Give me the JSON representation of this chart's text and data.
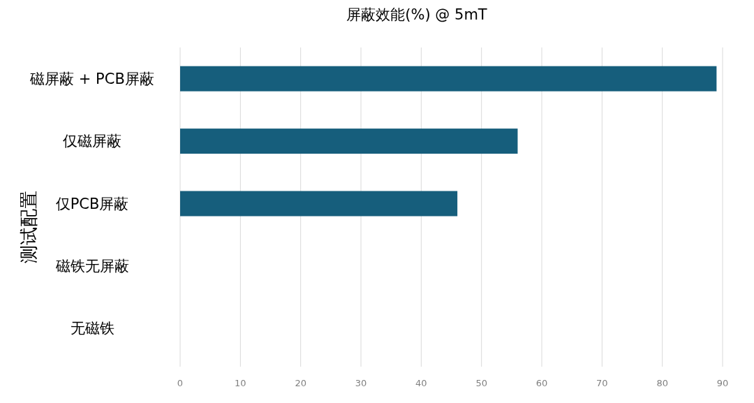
{
  "chart_data": {
    "type": "bar",
    "orientation": "horizontal",
    "title": "屏蔽效能(%) @ 5mT",
    "ylabel": "测试配置",
    "categories": [
      "磁屏蔽 + PCB屏蔽",
      "仅磁屏蔽",
      "仅PCB屏蔽",
      "磁铁无屏蔽",
      "无磁铁"
    ],
    "values": [
      89,
      56,
      46,
      0,
      0
    ],
    "color": "#165e7c",
    "xlim": [
      0,
      90
    ],
    "xticks": [
      0,
      10,
      20,
      30,
      40,
      50,
      60,
      70,
      80,
      90
    ],
    "grid": "x"
  }
}
